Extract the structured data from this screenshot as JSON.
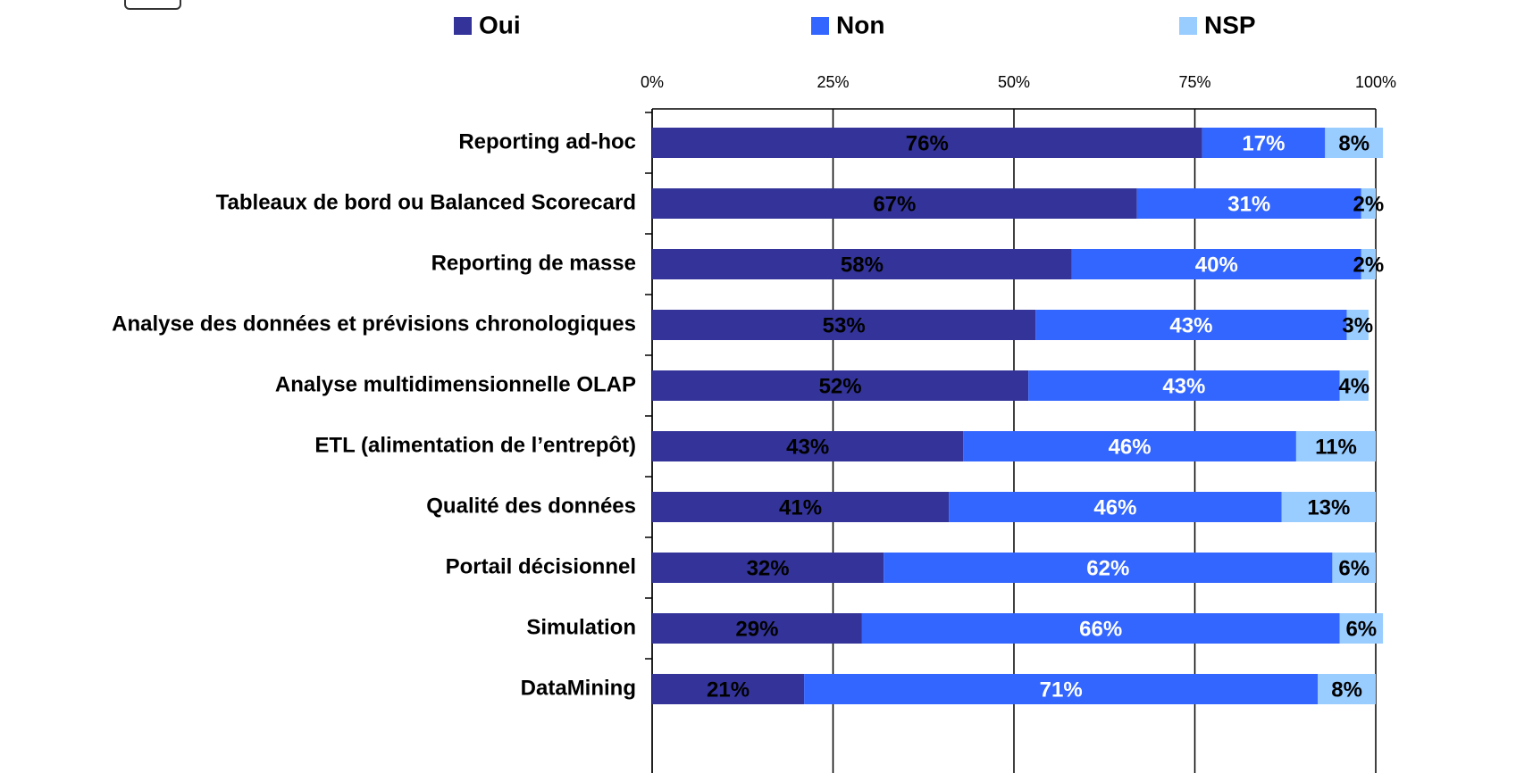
{
  "chart_data": {
    "type": "stacked_bar_horizontal",
    "categories": [
      "Reporting ad-hoc",
      "Tableaux de bord ou Balanced Scorecard",
      "Reporting de masse",
      "Analyse des données et prévisions chronologiques",
      "Analyse multidimensionnelle OLAP",
      "ETL (alimentation de l’entrepôt)",
      "Qualité des données",
      "Portail décisionnel",
      "Simulation",
      "DataMining"
    ],
    "series": [
      {
        "name": "Oui",
        "color": "#333399",
        "label_color": "#000000",
        "values": [
          76,
          67,
          58,
          53,
          52,
          43,
          41,
          32,
          29,
          21
        ],
        "value_labels": [
          "76%",
          "67%",
          "58%",
          "53%",
          "52%",
          "43%",
          "41%",
          "32%",
          "29%",
          "21%"
        ]
      },
      {
        "name": "Non",
        "color": "#3366ff",
        "label_color": "#ffffff",
        "values": [
          17,
          31,
          40,
          43,
          43,
          46,
          46,
          62,
          66,
          71
        ],
        "value_labels": [
          "17%",
          "31%",
          "40%",
          "43%",
          "43%",
          "46%",
          "46%",
          "62%",
          "66%",
          "71%"
        ]
      },
      {
        "name": "NSP",
        "color": "#99ccff",
        "label_color": "#000000",
        "values": [
          8,
          2,
          2,
          3,
          4,
          11,
          13,
          6,
          6,
          8
        ],
        "value_labels": [
          "8%",
          "2%",
          "2%",
          "3%",
          "4%",
          "11%",
          "13%",
          "6%",
          "6%",
          "8%"
        ]
      }
    ],
    "xlim": [
      0,
      100
    ],
    "xticks": [
      {
        "value": 0,
        "label": "0%"
      },
      {
        "value": 25,
        "label": "25%"
      },
      {
        "value": 50,
        "label": "50%"
      },
      {
        "value": 75,
        "label": "75%"
      },
      {
        "value": 100,
        "label": "100%"
      }
    ],
    "grid": true,
    "legend": "top"
  }
}
